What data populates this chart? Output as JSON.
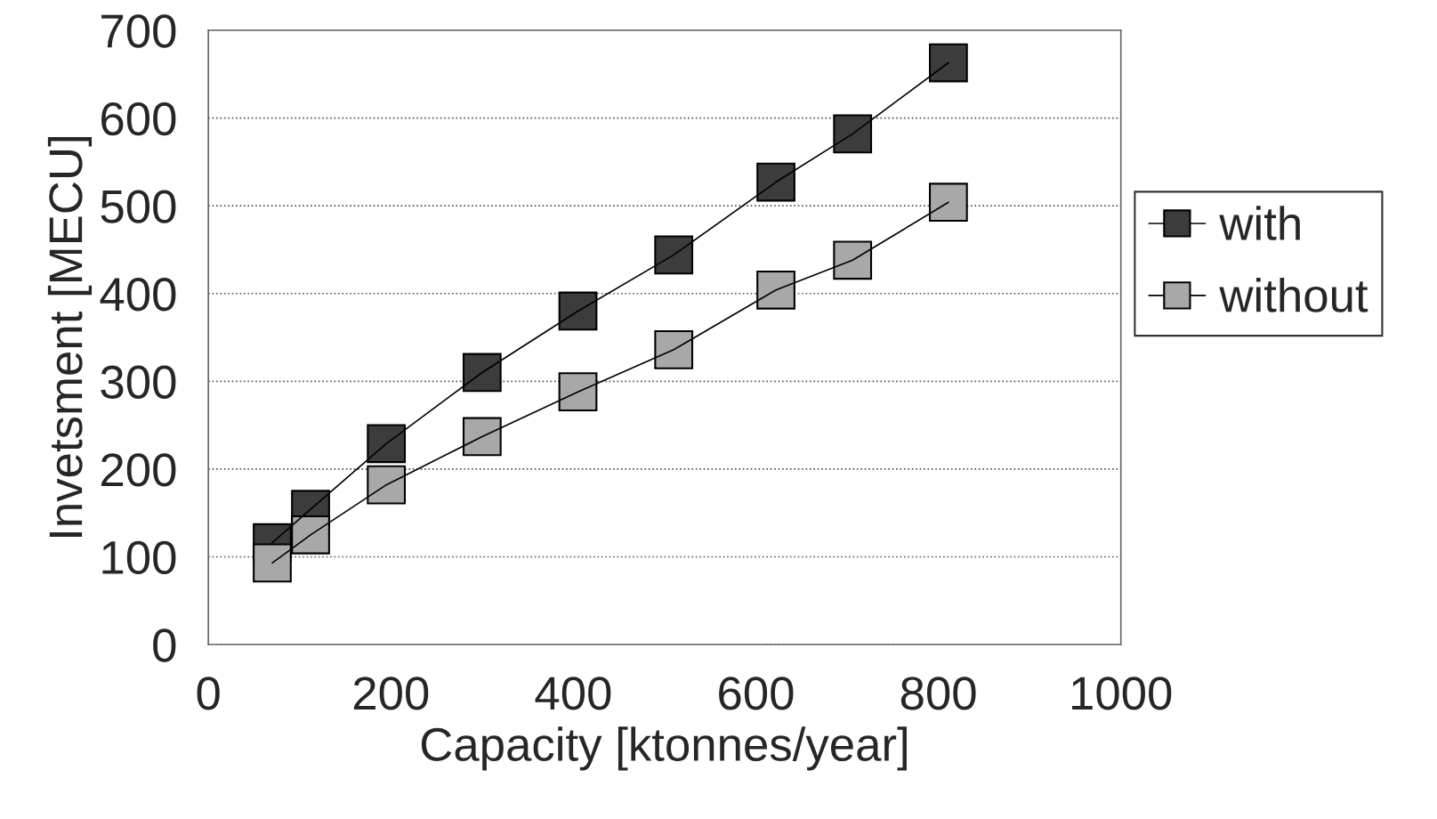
{
  "chart_data": {
    "type": "line",
    "xlabel": "Capacity [ktonnes/year]",
    "ylabel": "Invetsment [MECU]",
    "xlim": [
      0,
      1000
    ],
    "xticks": [
      0,
      200,
      400,
      600,
      800,
      1000
    ],
    "ylim": [
      0,
      700
    ],
    "yticks": [
      0,
      100,
      200,
      300,
      400,
      500,
      600,
      700
    ],
    "grid": "y",
    "legend": "right",
    "marker": "square",
    "line_style": "solid",
    "series": [
      {
        "name": "with",
        "color": "#3c3c3c",
        "x": [
          70,
          112,
          195,
          300,
          405,
          510,
          622,
          706,
          811
        ],
        "values": [
          116,
          154,
          229,
          310,
          380,
          444,
          527,
          582,
          663
        ]
      },
      {
        "name": "without",
        "color": "#a8a8a8",
        "x": [
          70,
          112,
          195,
          300,
          405,
          510,
          622,
          706,
          811
        ],
        "values": [
          93,
          125,
          182,
          237,
          288,
          336,
          404,
          438,
          504
        ]
      }
    ]
  }
}
